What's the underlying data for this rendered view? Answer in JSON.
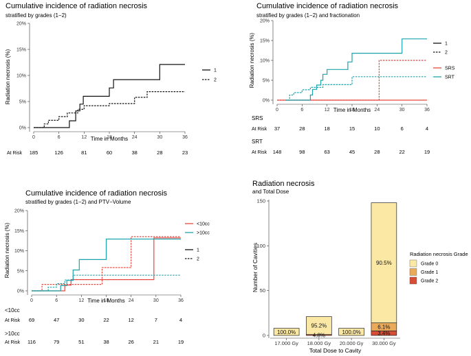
{
  "chart_data": [
    {
      "type": "line",
      "title": "Cumulative incidence of radiation necrosis",
      "subtitle": "stratified by grades (1−2)",
      "xlabel": "Time in Months",
      "ylabel": "Radiation necrosis (%)",
      "xlim": [
        0,
        36
      ],
      "ylim": [
        0,
        20
      ],
      "xticks": [
        0,
        6,
        12,
        18,
        24,
        30,
        36
      ],
      "yticks": [
        0,
        5,
        10,
        15,
        20
      ],
      "ytick_labels": [
        "0%",
        "5%",
        "10%",
        "15%",
        "20%"
      ],
      "legend": [
        {
          "label": "1",
          "dash": "solid"
        },
        {
          "label": "2",
          "dash": "dashed"
        }
      ],
      "series": [
        {
          "name": "1",
          "color": "#111111",
          "dash": "solid",
          "points": [
            [
              0,
              0
            ],
            [
              7.5,
              0
            ],
            [
              8.5,
              0
            ],
            [
              8.5,
              1.3
            ],
            [
              10,
              1.3
            ],
            [
              10,
              3.2
            ],
            [
              11,
              3.2
            ],
            [
              11,
              4.5
            ],
            [
              11.8,
              4.5
            ],
            [
              11.8,
              6
            ],
            [
              18,
              6
            ],
            [
              18,
              7.6
            ],
            [
              19,
              7.6
            ],
            [
              19,
              9.2
            ],
            [
              30,
              9.2
            ],
            [
              30,
              12.1
            ],
            [
              36,
              12.1
            ]
          ]
        },
        {
          "name": "2",
          "color": "#111111",
          "dash": "dashed",
          "points": [
            [
              0,
              0
            ],
            [
              2.5,
              0
            ],
            [
              2.5,
              0.7
            ],
            [
              3.5,
              0.7
            ],
            [
              3.5,
              1.4
            ],
            [
              6,
              1.4
            ],
            [
              6,
              2.1
            ],
            [
              8,
              2.1
            ],
            [
              8,
              2.8
            ],
            [
              10.5,
              2.8
            ],
            [
              10.5,
              3.5
            ],
            [
              12,
              3.5
            ],
            [
              12,
              4.2
            ],
            [
              18,
              4.2
            ],
            [
              18,
              4.6
            ],
            [
              24,
              4.6
            ],
            [
              24,
              5.8
            ],
            [
              27,
              5.8
            ],
            [
              27,
              6.9
            ],
            [
              36,
              6.9
            ]
          ]
        }
      ],
      "at_risk": {
        "label": "At Risk",
        "rows": [
          {
            "name": "",
            "values": [
              185,
              126,
              81,
              60,
              38,
              28,
              23
            ]
          }
        ]
      }
    },
    {
      "type": "line",
      "title": "Cumulative incidence of radiation necrosis",
      "subtitle": "stratified by grades (1−2) and fractionation",
      "xlabel": "Time in Months",
      "ylabel": "Radiation necrosis (%)",
      "xlim": [
        0,
        36
      ],
      "ylim": [
        0,
        20
      ],
      "xticks": [
        0,
        6,
        12,
        18,
        24,
        30,
        36
      ],
      "yticks": [
        0,
        5,
        10,
        15,
        20
      ],
      "ytick_labels": [
        "0%",
        "5%",
        "10%",
        "15%",
        "20%"
      ],
      "legend": [
        {
          "label": "1",
          "dash": "solid",
          "color": "#111111"
        },
        {
          "label": "2",
          "dash": "dashed",
          "color": "#111111"
        },
        {
          "label": "SRS",
          "dash": "solid",
          "color": "#e8473f"
        },
        {
          "label": "SRT",
          "dash": "solid",
          "color": "#1aa3ad"
        }
      ],
      "series": [
        {
          "name": "SRS 1",
          "color": "#e8473f",
          "dash": "solid",
          "points": [
            [
              0,
              0
            ],
            [
              36,
              0
            ]
          ]
        },
        {
          "name": "SRS 2",
          "color": "#e8473f",
          "dash": "dashed",
          "points": [
            [
              0,
              0
            ],
            [
              24.5,
              0
            ],
            [
              24.5,
              10
            ],
            [
              36,
              10
            ]
          ]
        },
        {
          "name": "SRT 1",
          "color": "#1aa3ad",
          "dash": "solid",
          "points": [
            [
              2,
              0
            ],
            [
              8,
              0
            ],
            [
              8,
              1.3
            ],
            [
              8.5,
              1.3
            ],
            [
              8.5,
              2.7
            ],
            [
              9.5,
              2.7
            ],
            [
              9.5,
              3.8
            ],
            [
              10.5,
              3.8
            ],
            [
              10.5,
              5
            ],
            [
              11,
              5
            ],
            [
              11,
              6.5
            ],
            [
              12,
              6.5
            ],
            [
              12,
              7.7
            ],
            [
              17,
              7.7
            ],
            [
              17,
              9.6
            ],
            [
              18,
              9.6
            ],
            [
              18,
              11.8
            ],
            [
              30,
              11.8
            ],
            [
              30,
              15.4
            ],
            [
              36,
              15.4
            ]
          ]
        },
        {
          "name": "SRT 2",
          "color": "#1aa3ad",
          "dash": "dashed",
          "points": [
            [
              2,
              0
            ],
            [
              3,
              0
            ],
            [
              3,
              1.3
            ],
            [
              4,
              1.3
            ],
            [
              4,
              1.9
            ],
            [
              6,
              1.9
            ],
            [
              6,
              2.6
            ],
            [
              8,
              2.6
            ],
            [
              8,
              3.2
            ],
            [
              11,
              3.2
            ],
            [
              11,
              3.9
            ],
            [
              18,
              3.9
            ],
            [
              18,
              5.9
            ],
            [
              36,
              5.9
            ]
          ]
        }
      ],
      "at_risk": {
        "label": "At Risk",
        "rows": [
          {
            "name": "SRS",
            "values": [
              37,
              28,
              18,
              15,
              10,
              6,
              4
            ]
          },
          {
            "name": "SRT",
            "values": [
              148,
              98,
              63,
              45,
              28,
              22,
              19
            ]
          }
        ]
      }
    },
    {
      "type": "line",
      "title": "Cumulative incidence of radiation necrosis",
      "subtitle": "stratified by grades (1−2) and PTV−Volume",
      "xlabel": "Time in Months",
      "ylabel": "Radiation necrosis (%)",
      "xlim": [
        0,
        36
      ],
      "ylim": [
        0,
        20
      ],
      "xticks": [
        0,
        6,
        12,
        18,
        24,
        30,
        36
      ],
      "yticks": [
        0,
        5,
        10,
        15,
        20
      ],
      "ytick_labels": [
        "0%",
        "5%",
        "10%",
        "15%",
        "20%"
      ],
      "legend": [
        {
          "label": "<10cc",
          "dash": "solid",
          "color": "#e8473f"
        },
        {
          "label": ">10cc",
          "dash": "solid",
          "color": "#1aa3ad"
        },
        {
          "label": "1",
          "dash": "solid",
          "color": "#111111"
        },
        {
          "label": "2",
          "dash": "dashed",
          "color": "#111111"
        }
      ],
      "series": [
        {
          "name": "<10cc 1",
          "color": "#e8473f",
          "dash": "solid",
          "points": [
            [
              0,
              0
            ],
            [
              8,
              0
            ],
            [
              8,
              1.4
            ],
            [
              9.5,
              1.4
            ],
            [
              9.5,
              2.8
            ],
            [
              29.5,
              2.8
            ],
            [
              29.5,
              13.2
            ],
            [
              36,
              13.2
            ]
          ]
        },
        {
          "name": "<10cc 2",
          "color": "#e8473f",
          "dash": "dashed",
          "points": [
            [
              0,
              0
            ],
            [
              2.5,
              0
            ],
            [
              2.5,
              1.6
            ],
            [
              17,
              1.6
            ],
            [
              17,
              5.8
            ],
            [
              24,
              5.8
            ],
            [
              24,
              13.5
            ],
            [
              36,
              13.5
            ]
          ]
        },
        {
          "name": ">10cc 1",
          "color": "#1aa3ad",
          "dash": "solid",
          "points": [
            [
              0,
              0
            ],
            [
              7,
              0
            ],
            [
              7,
              1.3
            ],
            [
              8.5,
              1.3
            ],
            [
              8.5,
              2.6
            ],
            [
              10,
              2.6
            ],
            [
              10,
              5.2
            ],
            [
              11.5,
              5.2
            ],
            [
              11.5,
              7.8
            ],
            [
              18,
              7.8
            ],
            [
              18,
              12.9
            ],
            [
              36,
              12.9
            ]
          ]
        },
        {
          "name": ">10cc 2",
          "color": "#1aa3ad",
          "dash": "dashed",
          "points": [
            [
              0,
              0
            ],
            [
              4,
              0
            ],
            [
              4,
              0.9
            ],
            [
              6,
              0.9
            ],
            [
              6,
              1.8
            ],
            [
              8,
              1.8
            ],
            [
              8,
              2.7
            ],
            [
              10,
              2.7
            ],
            [
              10,
              3.9
            ],
            [
              36,
              3.9
            ]
          ]
        }
      ],
      "at_risk": {
        "label": "At Risk",
        "rows": [
          {
            "name": "<10cc",
            "values": [
              69,
              47,
              30,
              22,
              12,
              7,
              4
            ]
          },
          {
            "name": ">10cc",
            "values": [
              116,
              79,
              51,
              38,
              26,
              21,
              19
            ]
          }
        ]
      }
    },
    {
      "type": "bar",
      "title": "Radiation necrosis",
      "subtitle": "and Total Dose",
      "xlabel": "Total Dose to Cavity",
      "ylabel": "Number of Cavities",
      "categories": [
        "17.000 Gy",
        "18.000 Gy",
        "20.000 Gy",
        "30.000 Gy"
      ],
      "ylim": [
        0,
        150
      ],
      "yticks": [
        0,
        50,
        100,
        150
      ],
      "legend_title": "Radiation necrosis Grade",
      "series": [
        {
          "name": "Grade 0",
          "color": "#fbe8a5",
          "values": [
            8,
            20,
            8,
            134
          ]
        },
        {
          "name": "Grade 1",
          "color": "#eba95a",
          "values": [
            0,
            0,
            0,
            9
          ]
        },
        {
          "name": "Grade 2",
          "color": "#d84d35",
          "values": [
            0,
            1,
            0,
            5
          ]
        }
      ],
      "labels": [
        {
          "category": 0,
          "stack": 0,
          "text": "100.0%"
        },
        {
          "category": 1,
          "stack": 0,
          "text": "95.2%"
        },
        {
          "category": 1,
          "stack": 2,
          "text": "4.8%"
        },
        {
          "category": 2,
          "stack": 0,
          "text": "100.0%"
        },
        {
          "category": 3,
          "stack": 0,
          "text": "90.5%"
        },
        {
          "category": 3,
          "stack": 1,
          "text": "6.1%"
        },
        {
          "category": 3,
          "stack": 2,
          "text": "3.4%"
        }
      ]
    }
  ]
}
